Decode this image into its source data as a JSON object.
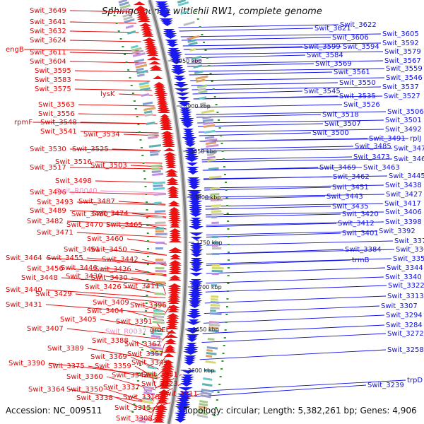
{
  "title": "Sphingomonas wittichii RW1, complete genome",
  "footer": {
    "accession": "Accession: NC_009511",
    "summary": "Topology: circular; Length: 5,382,261 bp; Genes: 4,906"
  },
  "colors": {
    "left_labels": "#e00000",
    "right_labels": "#1010e0",
    "rna_labels": "#f08cc8",
    "forward_genes": "#ee1111",
    "reverse_genes": "#1a1aee",
    "backbone": "#808080"
  },
  "ruler_ticks": [
    "3950 kbp",
    "3900 kbp",
    "3850 kbp",
    "3800 kbp",
    "3750 kbp",
    "3700 kbp",
    "3650 kbp",
    "3600 kbp"
  ],
  "left_labels": [
    "Swit_3649",
    "Swit_3641",
    "Swit_3632",
    "Swit_3624",
    "engB",
    "Swit_3611",
    "Swit_3604",
    "Swit_3595",
    "Swit_3583",
    "Swit_3575",
    "lysK",
    "Swit_3563",
    "Swit_3556",
    "rpmF",
    "Swit_3548",
    "Swit_3541",
    "Swit_3534",
    "Swit_3530",
    "Swit_3525",
    "Swit_3517",
    "Swit_3516",
    "Swit_3503",
    "Swit_3498",
    "Swit_3496",
    "Swit_R0040",
    "Swit_3493",
    "Swit_3487",
    "Swit_3489",
    "Swit_3480",
    "Swit_3474",
    "Swit_3482",
    "Swit_3470",
    "Swit_3465",
    "Swit_3471",
    "Swit_3460",
    "Swit_3461",
    "Swit_3450",
    "Swit_3464",
    "Swit_3455",
    "Swit_3442",
    "Swit_3456",
    "Swit_3446",
    "Swit_3436",
    "Swit_3448",
    "Swit_3439",
    "Swit_3430",
    "Swit_3440",
    "Swit_3426",
    "Swit_3411",
    "Swit_3429",
    "Swit_3431",
    "Swit_3409",
    "Swit_3404",
    "Swit_3396",
    "Swit_3405",
    "Swit_3391",
    "Swit_3407",
    "Swit_R0037",
    "groEL",
    "Swit_3388",
    "Swit_3367",
    "Swit_3389",
    "Swit_3357",
    "Swit_3369",
    "Swit_3390",
    "Swit_3375",
    "Swit_3359",
    "Swit_3345",
    "Swit_3360",
    "Swit_3342",
    "Swit_3331",
    "Swit_3337",
    "Swit_3323",
    "Swit_3364",
    "Swit_3350",
    "Swit_3318",
    "Swit_3311",
    "Swit_3338",
    "Swit_3315",
    "Swit_3308"
  ],
  "right_labels": [
    "Swit_3621",
    "Swit_3622",
    "Swit_3606",
    "Swit_3605",
    "Swit_3599",
    "Swit_3594",
    "Swit_3592",
    "Swit_3584",
    "Swit_3579",
    "Swit_3569",
    "Swit_3567",
    "Swit_3561",
    "Swit_3559",
    "Swit_3550",
    "Swit_3546",
    "Swit_3545",
    "Swit_3537",
    "Swit_3535",
    "Swit_3527",
    "Swit_3526",
    "Swit_3518",
    "Swit_3506",
    "Swit_3507",
    "Swit_3501",
    "Swit_3500",
    "Swit_3492",
    "Swit_3491",
    "rplJ",
    "Swit_3485",
    "Swit_3475",
    "Swit_3473",
    "Swit_3466",
    "Swit_3469",
    "Swit_3463",
    "Swit_3462",
    "Swit_3445",
    "Swit_3451",
    "Swit_3438",
    "Swit_3443",
    "Swit_3427",
    "Swit_3435",
    "Swit_3417",
    "Swit_3420",
    "Swit_3406",
    "Swit_3412",
    "Swit_3398",
    "Swit_3401",
    "Swit_3392",
    "Swit_3378",
    "Swit_3384",
    "Swit_3368",
    "trmB",
    "Swit_3358",
    "Swit_3344",
    "Swit_3340",
    "Swit_3322",
    "Swit_3313",
    "Swit_3307",
    "Swit_3294",
    "Swit_3284",
    "Swit_3272",
    "Swit_3258",
    "Swit_3239",
    "trpD"
  ]
}
